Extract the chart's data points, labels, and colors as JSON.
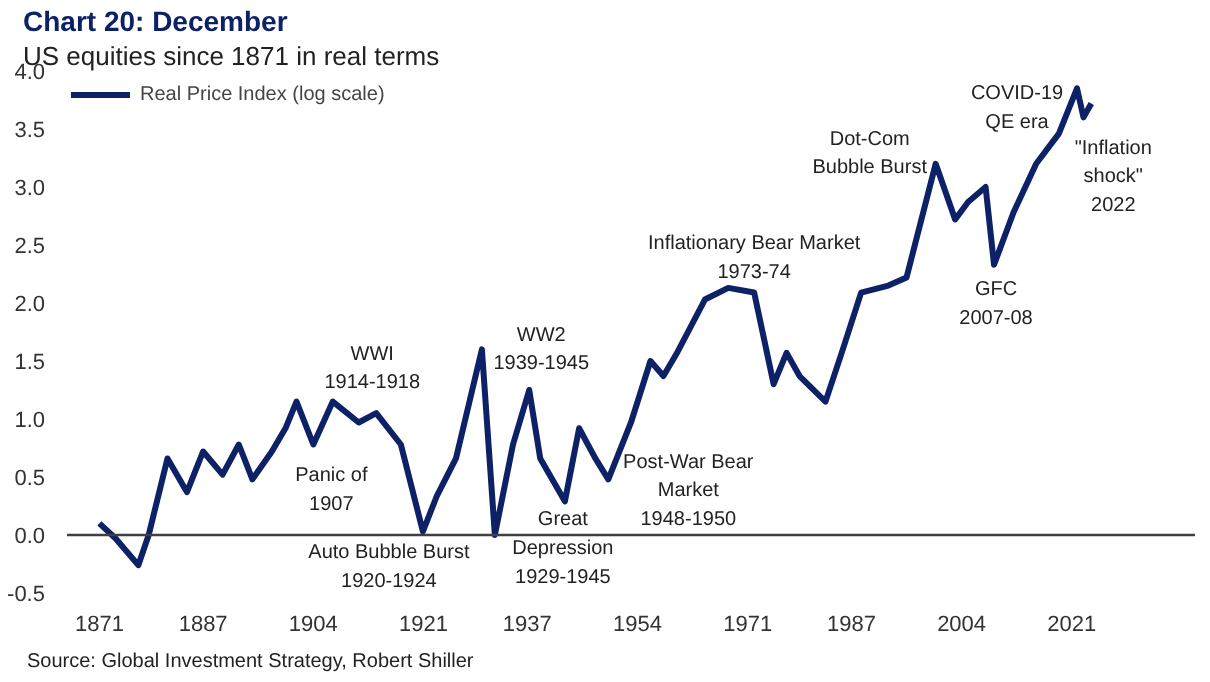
{
  "chart_data": {
    "type": "line",
    "title": "Chart 20: December",
    "subtitle": "US equities since 1871 in real terms",
    "xlim": [
      1866,
      2040
    ],
    "ylim": [
      -0.5,
      4.0
    ],
    "xticks": [
      1871,
      1887,
      1904,
      1921,
      1937,
      1954,
      1971,
      1987,
      2004,
      2021
    ],
    "yticks": [
      {
        "value": -0.5,
        "label": "-0.5"
      },
      {
        "value": 0,
        "label": "0.0"
      },
      {
        "value": 0.5,
        "label": "0.5"
      },
      {
        "value": 1,
        "label": "1.0"
      },
      {
        "value": 1.5,
        "label": "1.5"
      },
      {
        "value": 2,
        "label": "2.0"
      },
      {
        "value": 2.5,
        "label": "2.5"
      },
      {
        "value": 3,
        "label": "3.0"
      },
      {
        "value": 3.5,
        "label": "3.5"
      },
      {
        "value": 4,
        "label": "4.0"
      }
    ],
    "grid": false,
    "legend": "top left",
    "line_style": "solid",
    "marker": "none",
    "ref_lines": [
      {
        "axis": "y",
        "value": 0,
        "label": null,
        "color": "#404040"
      }
    ],
    "series": [
      {
        "name": "Real Price Index (log scale)",
        "color": "#0d2167",
        "x": [
          1871,
          1873.5,
          1877,
          1878.6,
          1881.5,
          1884.5,
          1887,
          1890,
          1892.5,
          1894.6,
          1897.6,
          1899.7,
          1901.4,
          1904,
          1907,
          1911,
          1913.7,
          1917.5,
          1920.9,
          1923,
          1926,
          1930,
          1932,
          1934.8,
          1937.3,
          1939,
          1942.8,
          1945,
          1947.5,
          1949.5,
          1953,
          1956,
          1958,
          1960,
          1964.4,
          1968,
          1972,
          1975,
          1977,
          1979,
          1983,
          1985.5,
          1988.5,
          1992.7,
          1995.5,
          2000,
          2003,
          2005,
          2007.7,
          2009,
          2012,
          2015.5,
          2019,
          2021.8,
          2022.8,
          2024
        ],
        "values": [
          0.1,
          -0.03,
          -0.26,
          0.0,
          0.66,
          0.37,
          0.72,
          0.52,
          0.78,
          0.48,
          0.72,
          0.92,
          1.15,
          0.78,
          1.15,
          0.97,
          1.05,
          0.78,
          0.03,
          0.33,
          0.66,
          1.6,
          0.0,
          0.78,
          1.25,
          0.66,
          0.29,
          0.92,
          0.66,
          0.48,
          0.97,
          1.5,
          1.37,
          1.56,
          2.03,
          2.13,
          2.09,
          1.3,
          1.57,
          1.37,
          1.15,
          1.57,
          2.09,
          2.15,
          2.22,
          3.2,
          2.72,
          2.87,
          3.0,
          2.33,
          2.78,
          3.2,
          3.46,
          3.85,
          3.6,
          3.72
        ]
      }
    ],
    "annotations": [
      {
        "text": "WWI\n1914-1918",
        "x": 1913.7,
        "y": 1.05
      },
      {
        "text": "Panic of\n1907",
        "x": 1904,
        "y": 0.78
      },
      {
        "text": "Auto Bubble Burst\n1920-1924",
        "x": 1920.9,
        "y": 0.03
      },
      {
        "text": "WW2\n1939-1945",
        "x": 1937.3,
        "y": 1.25
      },
      {
        "text": "Great\nDepression\n1929-1945",
        "x": 1932,
        "y": 0.0
      },
      {
        "text": "Post-War Bear\nMarket\n1948-1950",
        "x": 1949.5,
        "y": 0.48
      },
      {
        "text": "Inflationary Bear Market\n1973-74",
        "x": 1972,
        "y": 2.09
      },
      {
        "text": "Dot-Com\nBubble Burst",
        "x": 2000,
        "y": 3.2
      },
      {
        "text": "COVID-19\nQE era",
        "x": 2021.8,
        "y": 3.85
      },
      {
        "text": "\"Inflation\nshock\"\n2022",
        "x": 2024,
        "y": 3.72
      },
      {
        "text": "GFC\n2007-08",
        "x": 2009,
        "y": 2.33
      },
      "Source: Global Investment Strategy, Robert Shiller"
    ]
  }
}
